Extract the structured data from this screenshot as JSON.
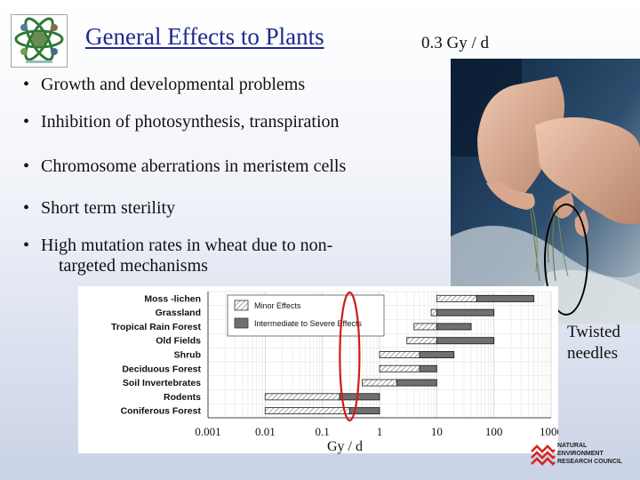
{
  "slide": {
    "title": "General Effects to Plants",
    "dose_label": "0.3 Gy / d",
    "photo_caption_line1": "Twisted",
    "photo_caption_line2": "needles"
  },
  "bullets": [
    {
      "text": "Growth and developmental problems"
    },
    {
      "text": "Inhibition of photosynthesis, transpiration"
    },
    {
      "text": "Chromosome aberrations in meristem cells"
    },
    {
      "text": "Short term sterility"
    },
    {
      "text": "High mutation rates in wheat due to non-",
      "cont": "targeted mechanisms"
    }
  ],
  "nerc": {
    "line1": "NATURAL",
    "line2": "ENVIRONMENT",
    "line3": "RESEARCH COUNCIL"
  },
  "chart_data": {
    "type": "bar",
    "orientation": "horizontal-range",
    "x_scale": "log",
    "xlim": [
      0.001,
      1000
    ],
    "xticks": [
      "0.001",
      "0.01",
      "0.1",
      "1",
      "10",
      "100",
      "1000"
    ],
    "xlabel": "Gy / d",
    "grid": true,
    "highlight_x": 0.3,
    "legend": {
      "position": "top-left",
      "entries": [
        {
          "label": "Minor Effects",
          "pattern": "hatched"
        },
        {
          "label": "Intermediate to Severe Effects",
          "pattern": "solid",
          "color": "#707070"
        }
      ]
    },
    "categories": [
      "Moss -lichen",
      "Grassland",
      "Tropical Rain Forest",
      "Old Fields",
      "Shrub",
      "Deciduous Forest",
      "Soil Invertebrates",
      "Rodents",
      "Coniferous Forest"
    ],
    "series": [
      {
        "name": "Minor Effects",
        "ranges": [
          [
            10,
            50
          ],
          [
            8,
            10
          ],
          [
            4,
            10
          ],
          [
            3,
            10
          ],
          [
            1,
            5
          ],
          [
            1,
            5
          ],
          [
            0.5,
            2
          ],
          [
            0.01,
            0.2
          ],
          [
            0.01,
            0.3
          ]
        ]
      },
      {
        "name": "Intermediate to Severe Effects",
        "ranges": [
          [
            50,
            500
          ],
          [
            10,
            100
          ],
          [
            10,
            40
          ],
          [
            10,
            100
          ],
          [
            5,
            20
          ],
          [
            5,
            10
          ],
          [
            2,
            10
          ],
          [
            0.2,
            1
          ],
          [
            0.3,
            1
          ]
        ]
      }
    ]
  }
}
